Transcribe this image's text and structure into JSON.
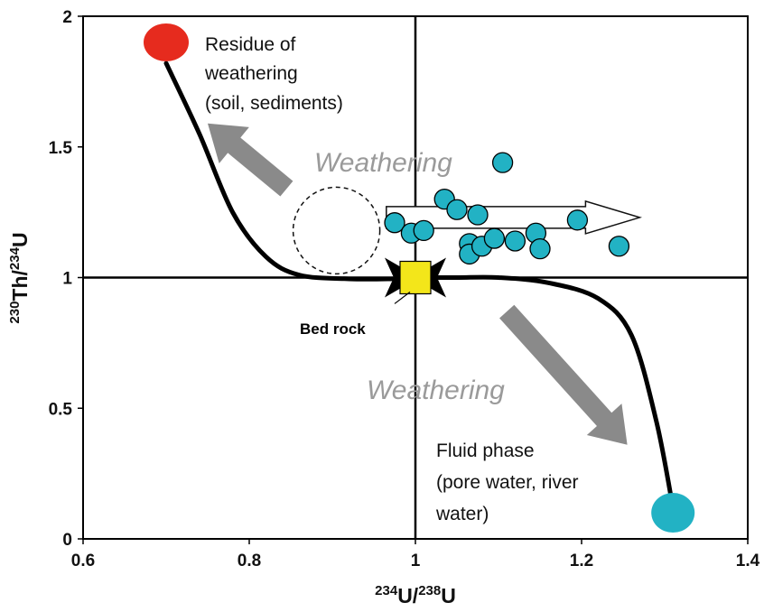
{
  "chart_data": {
    "type": "scatter",
    "xlabel_base": "U/",
    "xlabel_sup1": "234",
    "xlabel_sup2": "238",
    "xlabel_end": "U",
    "ylabel_base": "Th/",
    "ylabel_sup1": "230",
    "ylabel_sup2": "234",
    "ylabel_end": "U",
    "xlim": [
      0.6,
      1.4
    ],
    "ylim": [
      0,
      2
    ],
    "xticks": [
      "0.6",
      "0.8",
      "1",
      "1.2",
      "1.4"
    ],
    "yticks": [
      "0",
      "0.5",
      "1",
      "1.5",
      "2"
    ],
    "reference_lines": {
      "x": 1,
      "y": 1
    },
    "series": [
      {
        "points": [
          [
            0.975,
            1.21
          ],
          [
            0.995,
            1.17
          ],
          [
            1.01,
            1.18
          ],
          [
            1.035,
            1.3
          ],
          [
            1.05,
            1.26
          ],
          [
            1.065,
            1.13
          ],
          [
            1.065,
            1.09
          ],
          [
            1.075,
            1.24
          ],
          [
            1.08,
            1.12
          ],
          [
            1.095,
            1.15
          ],
          [
            1.105,
            1.44
          ],
          [
            1.12,
            1.14
          ],
          [
            1.145,
            1.17
          ],
          [
            1.15,
            1.11
          ],
          [
            1.195,
            1.22
          ],
          [
            1.245,
            1.12
          ]
        ],
        "color": "#22b2c4"
      }
    ],
    "curve_upper": [
      [
        0.7,
        1.82
      ],
      [
        0.74,
        1.55
      ],
      [
        0.78,
        1.25
      ],
      [
        0.82,
        1.08
      ],
      [
        0.86,
        1.01
      ],
      [
        0.92,
        0.995
      ],
      [
        0.97,
        0.995
      ],
      [
        0.995,
        1.0
      ]
    ],
    "curve_lower": [
      [
        1.005,
        1.0
      ],
      [
        1.05,
        1.0
      ],
      [
        1.1,
        1.0
      ],
      [
        1.16,
        0.98
      ],
      [
        1.22,
        0.92
      ],
      [
        1.26,
        0.78
      ],
      [
        1.29,
        0.45
      ],
      [
        1.31,
        0.12
      ]
    ],
    "endpoints": {
      "residue": {
        "x": 0.7,
        "y": 1.9,
        "color": "#e62b1e"
      },
      "fluid": {
        "x": 1.31,
        "y": 0.1,
        "color": "#22b2c4"
      }
    },
    "bedrock": {
      "x": 1.0,
      "y": 1.0,
      "color": "#f3e61a"
    },
    "annotations": {
      "residue": [
        "Residue of",
        "weathering",
        "(soil, sediments)"
      ],
      "weathering_upper": "Weathering",
      "weathering_lower": "Weathering",
      "bedrock": "Bed rock",
      "fluid": [
        "Fluid phase",
        "(pore water, river",
        "water)"
      ]
    },
    "grid": false,
    "colors": {
      "curve": "#000000",
      "arrow": "#8a8a8a",
      "frame": "#000000"
    }
  }
}
